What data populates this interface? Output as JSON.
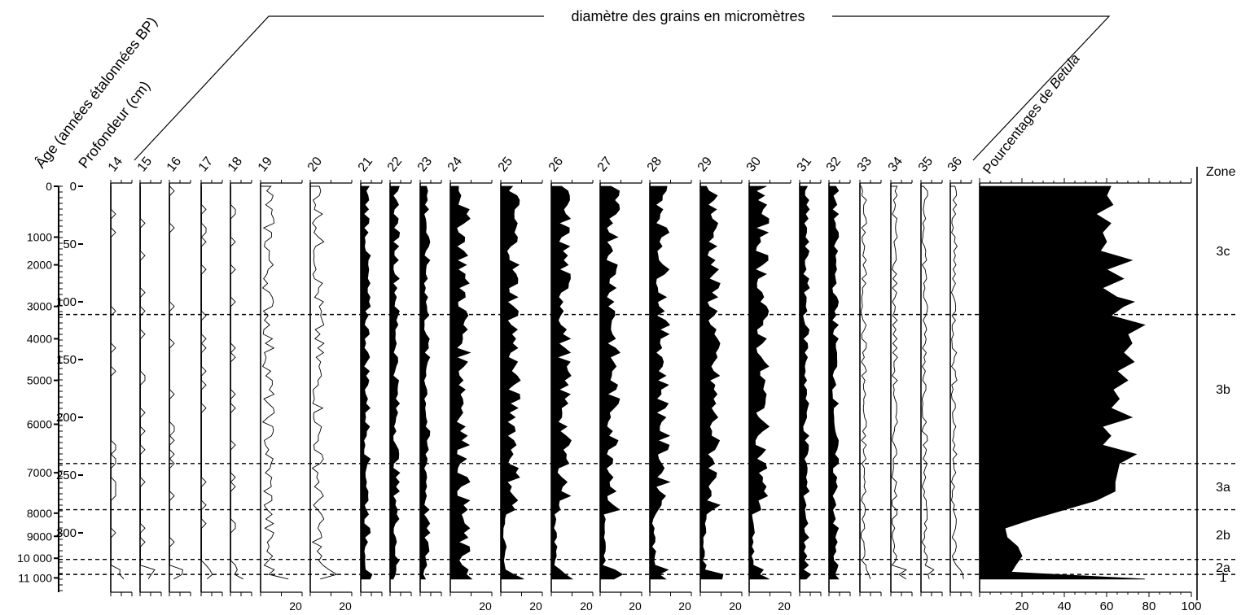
{
  "chart_data": {
    "type": "area",
    "title": "diamètre des grains en micromètres",
    "age_axis": {
      "label": "Âge (années étalonnées BP)",
      "ticks": [
        "0",
        "1000",
        "2000",
        "3000",
        "4000",
        "5000",
        "6000",
        "7000",
        "8000",
        "9000",
        "10 000",
        "11 000"
      ],
      "tick_depths": [
        0,
        44,
        68,
        104,
        132,
        168,
        206,
        248,
        283,
        303,
        322,
        339
      ]
    },
    "depth_axis": {
      "label": "Profondeur (cm)",
      "ticks": [
        "0",
        "50",
        "100",
        "150",
        "200",
        "250",
        "300"
      ],
      "range": [
        0,
        340
      ]
    },
    "grain_sizes": [
      "14",
      "15",
      "16",
      "17",
      "18",
      "19",
      "20",
      "21",
      "22",
      "23",
      "24",
      "25",
      "26",
      "27",
      "28",
      "29",
      "30",
      "31",
      "32",
      "33",
      "34",
      "35",
      "36"
    ],
    "betula": {
      "label_prefix": "Pourcentages de ",
      "label_taxon": "Betula",
      "ticks": [
        "20",
        "40",
        "60",
        "80",
        "100"
      ],
      "range": [
        0,
        100
      ],
      "depth": [
        0,
        8,
        16,
        24,
        32,
        40,
        48,
        56,
        64,
        72,
        80,
        88,
        96,
        100,
        104,
        108,
        112,
        120,
        128,
        136,
        144,
        152,
        160,
        168,
        176,
        184,
        192,
        200,
        208,
        216,
        224,
        232,
        240,
        248,
        256,
        264,
        272,
        280,
        288,
        296,
        304,
        312,
        320,
        328,
        334,
        340
      ],
      "percent": [
        62,
        60,
        63,
        55,
        62,
        58,
        60,
        57,
        72,
        60,
        68,
        58,
        65,
        73,
        68,
        65,
        62,
        78,
        70,
        72,
        68,
        73,
        65,
        70,
        63,
        66,
        62,
        72,
        58,
        62,
        58,
        74,
        66,
        65,
        64,
        64,
        55,
        40,
        25,
        12,
        13,
        18,
        20,
        17,
        15,
        78
      ]
    },
    "zones": {
      "label": "Zone",
      "items": [
        {
          "name": "3c",
          "top": 0,
          "bottom": 111
        },
        {
          "name": "3b",
          "top": 111,
          "bottom": 240
        },
        {
          "name": "3a",
          "top": 240,
          "bottom": 280
        },
        {
          "name": "2b",
          "top": 280,
          "bottom": 323
        },
        {
          "name": "2a",
          "top": 323,
          "bottom": 336
        },
        {
          "name": "1",
          "top": 336,
          "bottom": 340
        }
      ],
      "boundaries": [
        111,
        240,
        280,
        323,
        336
      ]
    },
    "scale_labels": [
      "20",
      "20",
      "20",
      "20",
      "20",
      "20",
      "20",
      "20",
      "20",
      "20",
      "20"
    ]
  }
}
